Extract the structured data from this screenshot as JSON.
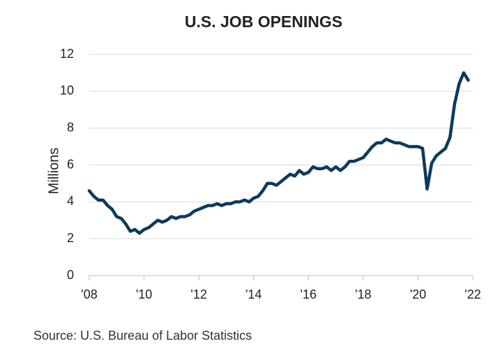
{
  "chart_data": {
    "type": "line",
    "title": "U.S. JOB OPENINGS",
    "y_label": "Millions",
    "source": "Source: U.S. Bureau of Labor Statistics",
    "x": [
      2008,
      2008.167,
      2008.333,
      2008.5,
      2008.667,
      2008.833,
      2009,
      2009.167,
      2009.333,
      2009.5,
      2009.667,
      2009.833,
      2010,
      2010.167,
      2010.333,
      2010.5,
      2010.667,
      2010.833,
      2011,
      2011.167,
      2011.333,
      2011.5,
      2011.667,
      2011.833,
      2012,
      2012.167,
      2012.333,
      2012.5,
      2012.667,
      2012.833,
      2013,
      2013.167,
      2013.333,
      2013.5,
      2013.667,
      2013.833,
      2014,
      2014.167,
      2014.333,
      2014.5,
      2014.667,
      2014.833,
      2015,
      2015.167,
      2015.333,
      2015.5,
      2015.667,
      2015.833,
      2016,
      2016.167,
      2016.333,
      2016.5,
      2016.667,
      2016.833,
      2017,
      2017.167,
      2017.333,
      2017.5,
      2017.667,
      2017.833,
      2018,
      2018.167,
      2018.333,
      2018.5,
      2018.667,
      2018.833,
      2019,
      2019.167,
      2019.333,
      2019.5,
      2019.667,
      2019.833,
      2020,
      2020.167,
      2020.333,
      2020.5,
      2020.667,
      2020.833,
      2021,
      2021.167,
      2021.333,
      2021.5,
      2021.667,
      2021.833
    ],
    "series": [
      {
        "name": "Job openings",
        "color": "#0d3a5c",
        "values": [
          4.6,
          4.3,
          4.1,
          4.1,
          3.8,
          3.6,
          3.2,
          3.1,
          2.8,
          2.4,
          2.5,
          2.3,
          2.5,
          2.6,
          2.8,
          3.0,
          2.9,
          3.0,
          3.2,
          3.1,
          3.2,
          3.2,
          3.3,
          3.5,
          3.6,
          3.7,
          3.8,
          3.8,
          3.9,
          3.8,
          3.9,
          3.9,
          4.0,
          4.0,
          4.1,
          4.0,
          4.2,
          4.3,
          4.6,
          5.0,
          5.0,
          4.9,
          5.1,
          5.3,
          5.5,
          5.4,
          5.7,
          5.5,
          5.6,
          5.9,
          5.8,
          5.8,
          5.9,
          5.7,
          5.9,
          5.7,
          5.9,
          6.2,
          6.2,
          6.3,
          6.4,
          6.7,
          7.0,
          7.2,
          7.2,
          7.4,
          7.3,
          7.2,
          7.2,
          7.1,
          7.0,
          7.0,
          7.0,
          6.9,
          4.7,
          6.1,
          6.5,
          6.7,
          6.9,
          7.5,
          9.3,
          10.4,
          11.0,
          10.6
        ]
      }
    ],
    "xlim": [
      2008,
      2022
    ],
    "ylim": [
      0,
      12
    ],
    "xticks": [
      {
        "value": 2008,
        "label": "'08"
      },
      {
        "value": 2010,
        "label": "'10"
      },
      {
        "value": 2012,
        "label": "'12"
      },
      {
        "value": 2014,
        "label": "'14"
      },
      {
        "value": 2016,
        "label": "'16"
      },
      {
        "value": 2018,
        "label": "'18"
      },
      {
        "value": 2020,
        "label": "'20"
      },
      {
        "value": 2022,
        "label": "'22"
      }
    ],
    "yticks": [
      0,
      2,
      4,
      6,
      8,
      10,
      12
    ],
    "grid": true
  }
}
